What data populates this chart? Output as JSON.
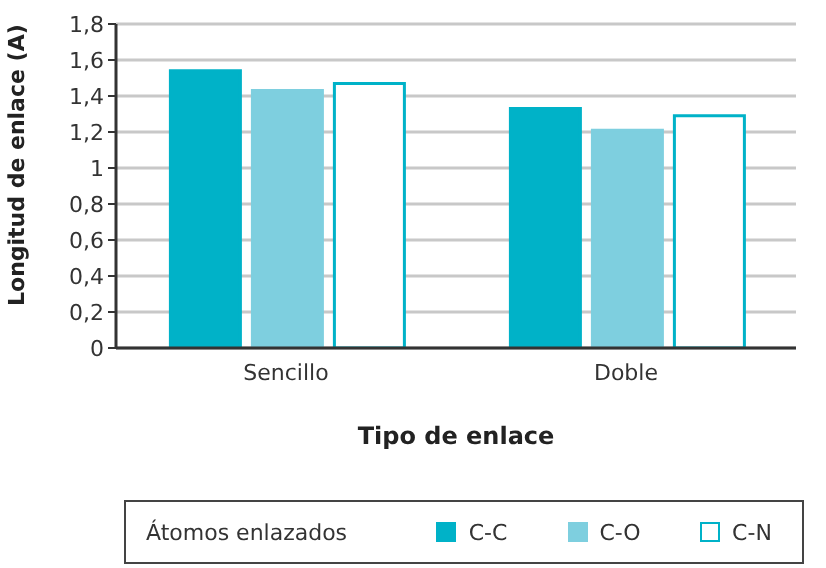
{
  "chart_data": {
    "type": "bar",
    "xlabel": "Tipo de enlace",
    "ylabel": "Longitud de enlace (A)",
    "legend_title": "Átomos enlazados",
    "categories": [
      "Sencillo",
      "Doble"
    ],
    "series": [
      {
        "name": "C-C",
        "color": "#00b2c8",
        "values": [
          1.54,
          1.33
        ]
      },
      {
        "name": "C-O",
        "color": "#7ecfdf",
        "values": [
          1.43,
          1.21
        ]
      },
      {
        "name": "C-N",
        "color": "#ffffff",
        "values": [
          1.47,
          1.29
        ]
      }
    ],
    "ylim": [
      0,
      1.8
    ],
    "yticks": [
      0,
      {
        "value": 0.2,
        "label": "0,2"
      },
      {
        "value": 0.4,
        "label": "0,4"
      },
      {
        "value": 0.6,
        "label": "0,6"
      },
      {
        "value": 0.8,
        "label": "0,8"
      },
      1,
      {
        "value": 1.2,
        "label": "1,2"
      },
      {
        "value": 1.4,
        "label": "1,4"
      },
      {
        "value": 1.6,
        "label": "1,6"
      },
      {
        "value": 1.8,
        "label": "1,8"
      }
    ],
    "grid": "y",
    "legend": "bottom"
  }
}
